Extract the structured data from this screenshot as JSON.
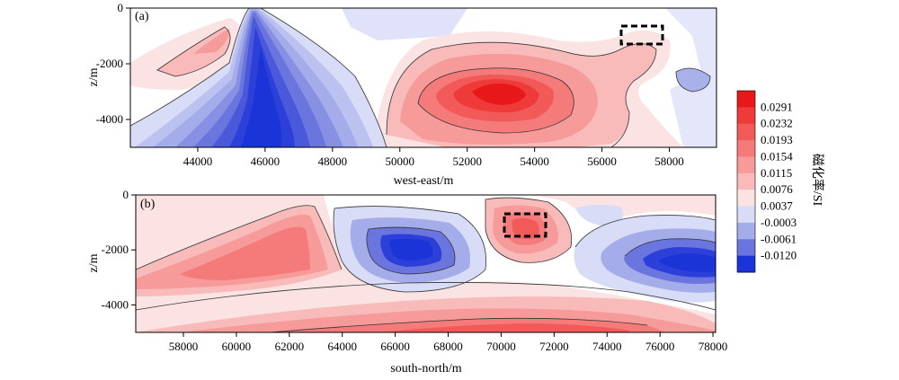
{
  "chart_data": [
    {
      "type": "heatmap",
      "panel_label": "(a)",
      "xlabel": "west-east/m",
      "ylabel": "z/m",
      "xlim": [
        42000,
        59400
      ],
      "ylim": [
        -5000,
        0
      ],
      "xticks": [
        "44000",
        "46000",
        "48000",
        "50000",
        "52000",
        "54000",
        "56000",
        "58000"
      ],
      "xtick_values": [
        44000,
        46000,
        48000,
        50000,
        52000,
        54000,
        56000,
        58000
      ],
      "yticks": [
        "0",
        "-2000",
        "-4000"
      ],
      "ytick_values": [
        0,
        -2000,
        -4000
      ],
      "anomalies": [
        {
          "kind": "negative",
          "x": 46800,
          "z": -2700,
          "peak": -0.012,
          "note": "dipping low from surface near x=45800"
        },
        {
          "kind": "positive",
          "x": 53200,
          "z": -3100,
          "peak": 0.0291
        },
        {
          "kind": "positive",
          "x": 44300,
          "z": -1200,
          "peak": 0.0076
        },
        {
          "kind": "negative",
          "x": 58800,
          "z": -2500,
          "peak": -0.0003
        }
      ],
      "dashed_box": {
        "x": [
          56700,
          58000
        ],
        "z": [
          -1300,
          -600
        ]
      }
    },
    {
      "type": "heatmap",
      "panel_label": "(b)",
      "xlabel": "south-north/m",
      "ylabel": "z/m",
      "xlim": [
        56200,
        78100
      ],
      "ylim": [
        -5000,
        0
      ],
      "xticks": [
        "58000",
        "60000",
        "62000",
        "64000",
        "66000",
        "68000",
        "70000",
        "72000",
        "74000",
        "76000",
        "78000"
      ],
      "xtick_values": [
        58000,
        60000,
        62000,
        64000,
        66000,
        68000,
        70000,
        72000,
        74000,
        76000,
        78000
      ],
      "yticks": [
        "0",
        "-2000",
        "-4000"
      ],
      "ytick_values": [
        0,
        -2000,
        -4000
      ],
      "anomalies": [
        {
          "kind": "negative",
          "x": 66700,
          "z": -1900,
          "peak": -0.012
        },
        {
          "kind": "negative",
          "x": 77200,
          "z": -2400,
          "peak": -0.012
        },
        {
          "kind": "positive",
          "x": 70900,
          "z": -1300,
          "peak": 0.0154
        },
        {
          "kind": "positive",
          "x": 60500,
          "z": -2600,
          "peak": 0.0115
        },
        {
          "kind": "positive",
          "x": 70000,
          "z": -4700,
          "peak": 0.0154
        }
      ],
      "dashed_box": {
        "x": [
          70000,
          71700
        ],
        "z": [
          -1500,
          -700
        ]
      }
    }
  ],
  "colorbar": {
    "title": "磁化率/SI",
    "ticks": [
      "0.0291",
      "0.0232",
      "0.0193",
      "0.0154",
      "0.0115",
      "0.0076",
      "0.0037",
      "-0.0003",
      "-0.0061",
      "-0.0120"
    ],
    "colors": [
      "#e8171a",
      "#ef3a3a",
      "#f25a5a",
      "#f57a7a",
      "#f79a9a",
      "#f9baba",
      "#fbe3e3",
      "#d8dcf6",
      "#a4ace9",
      "#6a76de",
      "#1a34d8"
    ]
  },
  "colors": {
    "deep_blue": "#1a34d8",
    "deep_red": "#e8171a",
    "neutral": "#ffffff"
  }
}
